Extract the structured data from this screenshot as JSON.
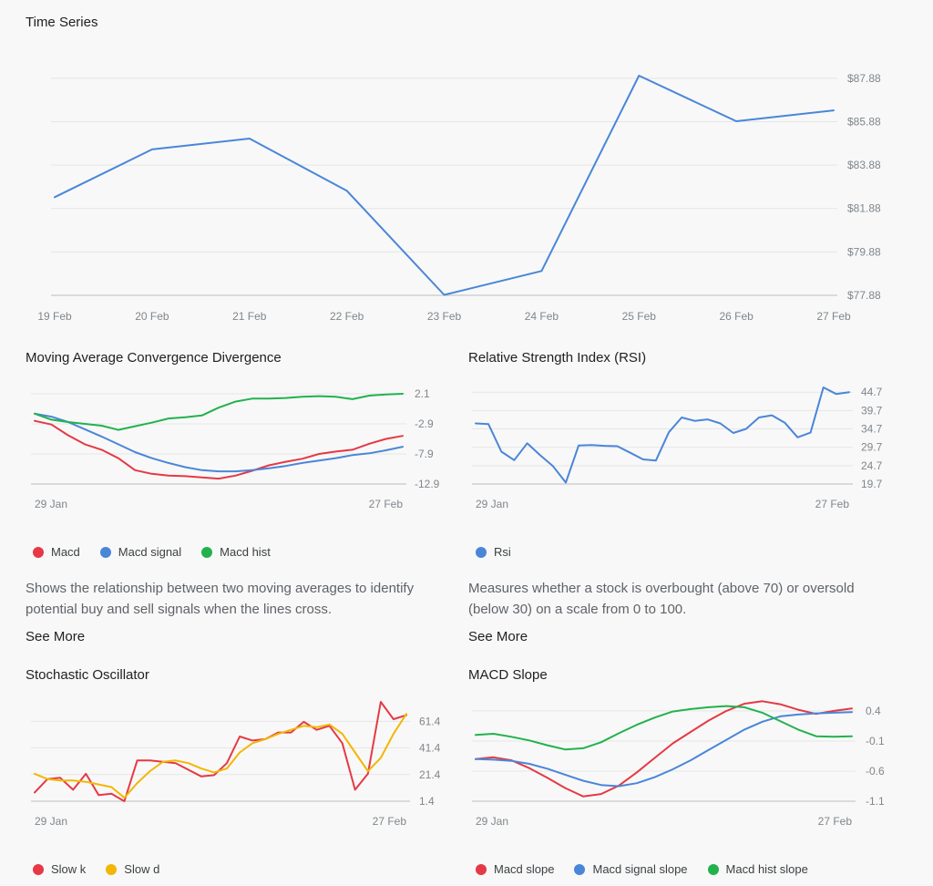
{
  "colors": {
    "blue": "#4a86d8",
    "red": "#e53945",
    "green": "#22b24c",
    "yellow": "#f2b705",
    "grid": "#e6e6e6",
    "axis": "#bdbdbd"
  },
  "chart_data": [
    {
      "id": "time-series",
      "type": "line",
      "title": "Time Series",
      "categories": [
        "19 Feb",
        "20 Feb",
        "21 Feb",
        "22 Feb",
        "23 Feb",
        "24 Feb",
        "25 Feb",
        "26 Feb",
        "27 Feb"
      ],
      "ylim": [
        77.88,
        88.88
      ],
      "yticks": [
        "$87.88",
        "$85.88",
        "$83.88",
        "$81.88",
        "$79.88",
        "$77.88"
      ],
      "ytick_values": [
        87.88,
        85.88,
        83.88,
        81.88,
        79.88,
        77.88
      ],
      "series": [
        {
          "name": "Price",
          "color": "blue",
          "values": [
            82.4,
            84.6,
            85.1,
            82.7,
            77.9,
            79.0,
            88.0,
            85.9,
            86.4
          ]
        }
      ]
    },
    {
      "id": "macd",
      "type": "line",
      "title": "Moving Average Convergence Divergence",
      "xlabels": [
        "29 Jan",
        "27 Feb"
      ],
      "ylim": [
        -12.9,
        2.1
      ],
      "yticks": [
        "2.1",
        "-2.9",
        "-7.9",
        "-12.9"
      ],
      "ytick_values": [
        2.1,
        -2.9,
        -7.9,
        -12.9
      ],
      "series": [
        {
          "name": "Macd",
          "color": "red",
          "values": [
            -2.4,
            -3.0,
            -4.8,
            -6.3,
            -7.2,
            -8.6,
            -10.6,
            -11.2,
            -11.5,
            -11.6,
            -11.8,
            -12.0,
            -11.5,
            -10.7,
            -9.8,
            -9.2,
            -8.7,
            -7.9,
            -7.5,
            -7.2,
            -6.2,
            -5.4,
            -4.9
          ]
        },
        {
          "name": "Macd signal",
          "color": "blue",
          "values": [
            -1.2,
            -1.7,
            -2.6,
            -3.8,
            -5.0,
            -6.3,
            -7.6,
            -8.6,
            -9.4,
            -10.1,
            -10.6,
            -10.8,
            -10.8,
            -10.6,
            -10.3,
            -9.9,
            -9.4,
            -9.0,
            -8.6,
            -8.1,
            -7.8,
            -7.3,
            -6.7
          ]
        },
        {
          "name": "Macd hist",
          "color": "green",
          "values": [
            -1.2,
            -2.2,
            -2.6,
            -2.9,
            -3.2,
            -3.9,
            -3.3,
            -2.7,
            -2.0,
            -1.8,
            -1.5,
            -0.2,
            0.8,
            1.3,
            1.3,
            1.4,
            1.6,
            1.7,
            1.6,
            1.2,
            1.8,
            2.0,
            2.1
          ]
        }
      ]
    },
    {
      "id": "rsi",
      "type": "line",
      "title": "Relative Strength Index (RSI)",
      "xlabels": [
        "29 Jan",
        "27 Feb"
      ],
      "ylim": [
        19.7,
        46.0
      ],
      "yticks": [
        "44.7",
        "39.7",
        "34.7",
        "29.7",
        "24.7",
        "19.7"
      ],
      "ytick_values": [
        44.7,
        39.7,
        34.7,
        29.7,
        24.7,
        19.7
      ],
      "series": [
        {
          "name": "Rsi",
          "color": "blue",
          "values": [
            36.2,
            36.0,
            28.5,
            26.2,
            30.8,
            27.6,
            24.6,
            20.1,
            30.2,
            30.3,
            30.1,
            30.0,
            28.2,
            26.4,
            26.1,
            33.8,
            37.8,
            36.9,
            37.3,
            36.2,
            33.6,
            34.7,
            37.8,
            38.4,
            36.4,
            32.4,
            33.7,
            46.0,
            44.2,
            44.7
          ]
        }
      ]
    },
    {
      "id": "stochastic",
      "type": "line",
      "title": "Stochastic Oscillator",
      "xlabels": [
        "29 Jan",
        "27 Feb"
      ],
      "ylim": [
        1.4,
        76.0
      ],
      "yticks": [
        "61.4",
        "41.4",
        "21.4",
        "1.4"
      ],
      "ytick_values": [
        61.4,
        41.4,
        21.4,
        1.4
      ],
      "series": [
        {
          "name": "Slow k",
          "color": "red",
          "values": [
            8.0,
            18.0,
            19.0,
            10.0,
            22.0,
            6.0,
            7.0,
            1.4,
            32.0,
            32.0,
            31.0,
            30.0,
            25.0,
            20.0,
            21.0,
            30.0,
            50.0,
            47.0,
            48.0,
            53.0,
            53.0,
            61.0,
            55.0,
            58.0,
            45.0,
            10.0,
            22.0,
            76.0,
            63.0,
            66.0
          ]
        },
        {
          "name": "Slow d",
          "color": "yellow",
          "values": [
            22.0,
            18.0,
            17.0,
            17.0,
            16.0,
            14.0,
            12.0,
            4.0,
            15.0,
            24.0,
            31.0,
            32.0,
            30.0,
            26.0,
            23.0,
            26.0,
            38.0,
            45.0,
            48.0,
            52.0,
            55.0,
            58.0,
            57.0,
            59.0,
            52.0,
            38.0,
            24.0,
            34.0,
            52.0,
            67.0
          ]
        }
      ]
    },
    {
      "id": "macd-slope",
      "type": "line",
      "title": "MACD Slope",
      "xlabels": [
        "29 Jan",
        "27 Feb"
      ],
      "ylim": [
        -1.1,
        0.55
      ],
      "yticks": [
        "0.4",
        "-0.1",
        "-0.6",
        "-1.1"
      ],
      "ytick_values": [
        0.4,
        -0.1,
        -0.6,
        -1.1
      ],
      "series": [
        {
          "name": "Macd slope",
          "color": "red",
          "values": [
            -0.4,
            -0.37,
            -0.42,
            -0.55,
            -0.71,
            -0.88,
            -1.02,
            -0.98,
            -0.84,
            -0.62,
            -0.38,
            -0.14,
            0.05,
            0.24,
            0.4,
            0.52,
            0.56,
            0.51,
            0.42,
            0.35,
            0.4,
            0.44
          ]
        },
        {
          "name": "Macd signal slope",
          "color": "blue",
          "values": [
            -0.4,
            -0.41,
            -0.43,
            -0.48,
            -0.56,
            -0.66,
            -0.76,
            -0.83,
            -0.85,
            -0.8,
            -0.7,
            -0.57,
            -0.42,
            -0.25,
            -0.08,
            0.09,
            0.22,
            0.31,
            0.34,
            0.36,
            0.37,
            0.38
          ]
        },
        {
          "name": "Macd hist slope",
          "color": "green",
          "values": [
            0.0,
            0.02,
            -0.03,
            -0.09,
            -0.17,
            -0.24,
            -0.22,
            -0.12,
            0.03,
            0.17,
            0.29,
            0.39,
            0.43,
            0.46,
            0.48,
            0.46,
            0.37,
            0.23,
            0.09,
            -0.02,
            -0.03,
            -0.02
          ]
        }
      ]
    }
  ],
  "sections": {
    "macd": {
      "legend": [
        "Macd",
        "Macd signal",
        "Macd hist"
      ],
      "description": "Shows the relationship between two moving averages to identify potential buy and sell signals when the lines cross.",
      "see_more": "See More"
    },
    "rsi": {
      "legend": [
        "Rsi"
      ],
      "description": "Measures whether a stock is overbought (above 70) or oversold (below 30) on a scale from 0 to 100.",
      "see_more": "See More"
    },
    "stochastic": {
      "legend": [
        "Slow k",
        "Slow d"
      ]
    },
    "macd_slope": {
      "legend": [
        "Macd slope",
        "Macd signal slope",
        "Macd hist slope"
      ]
    }
  }
}
